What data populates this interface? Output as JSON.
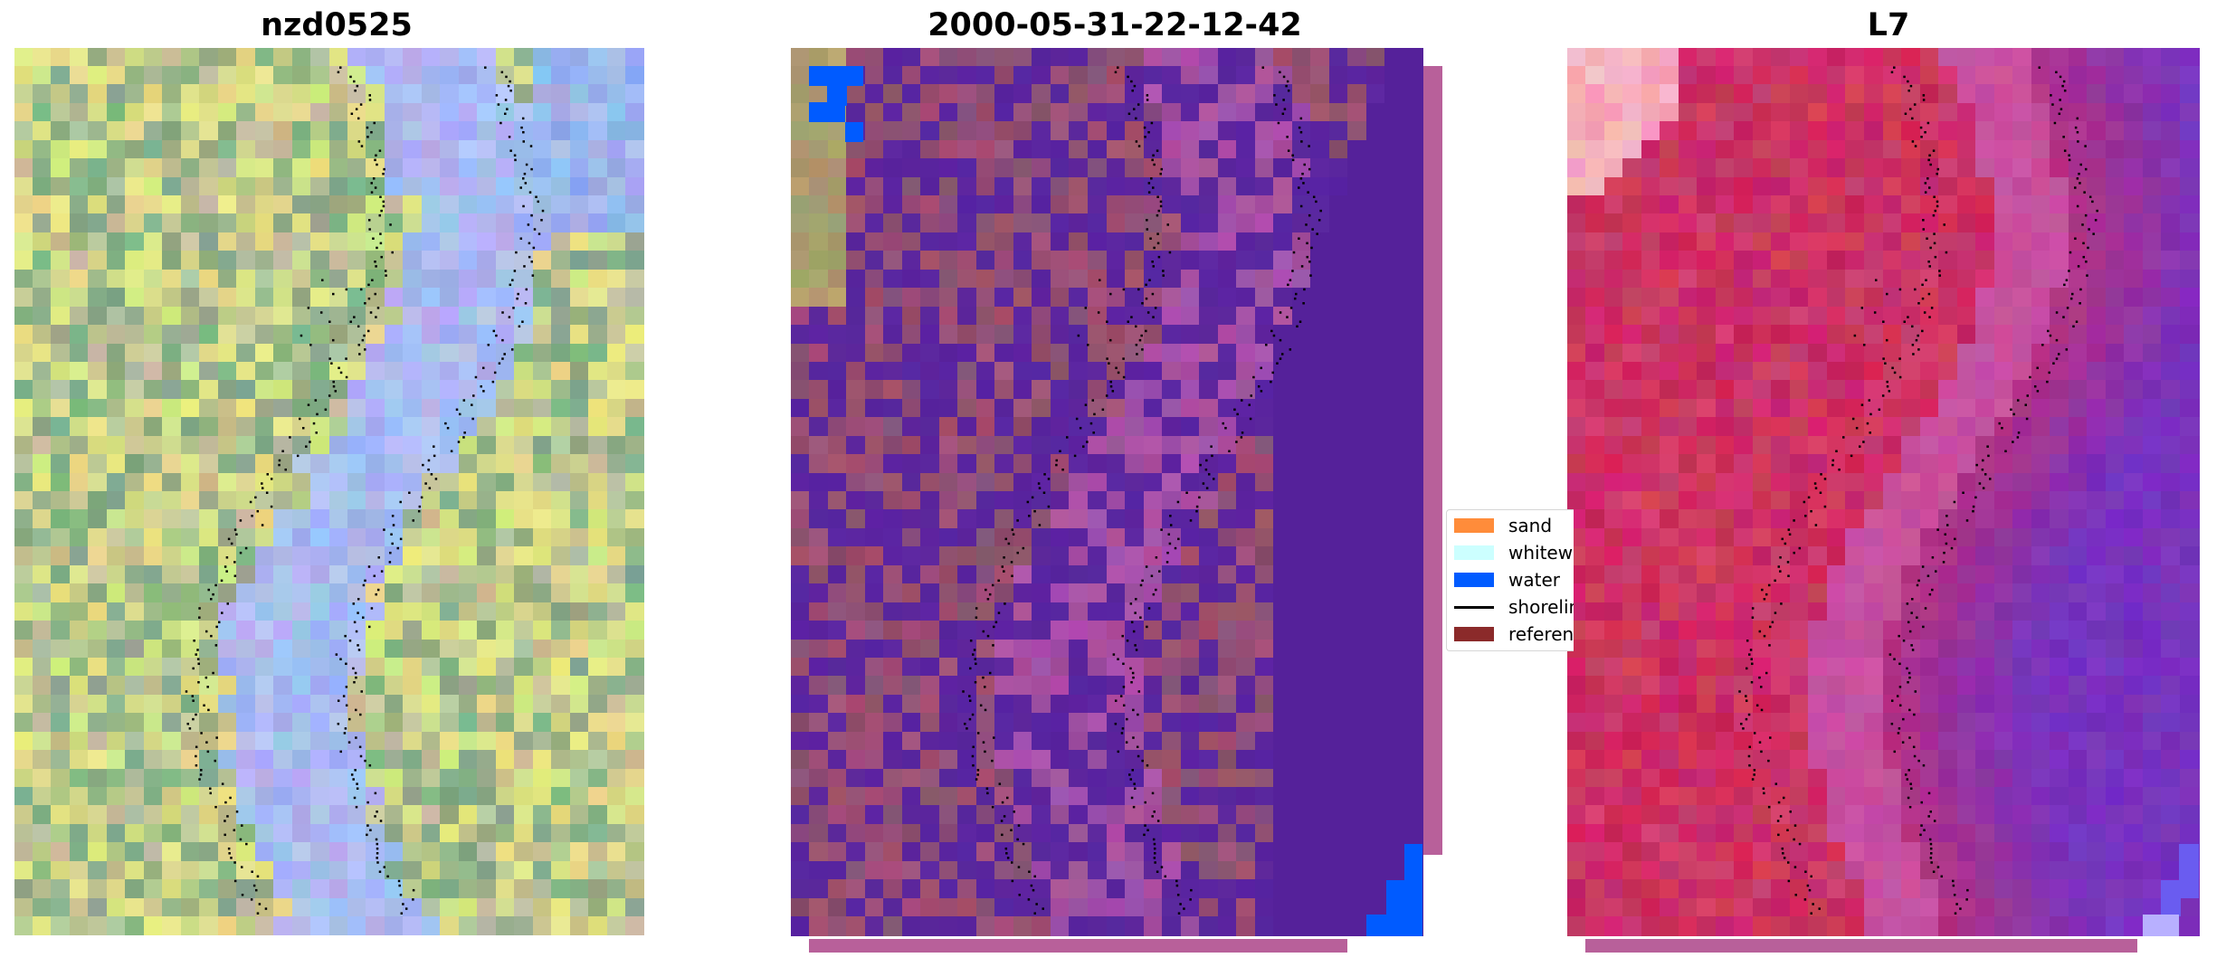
{
  "panels": [
    {
      "title": "nzd0525",
      "palette": "rgb"
    },
    {
      "title": "2000-05-31-22-12-42",
      "palette": "classified"
    },
    {
      "title": "L7",
      "palette": "mndwi"
    }
  ],
  "legend": {
    "items": [
      {
        "label": "sand",
        "color": "#ff8c3a",
        "kind": "patch"
      },
      {
        "label": "whitewater",
        "color": "#ccffff",
        "kind": "patch"
      },
      {
        "label": "water",
        "color": "#005bff",
        "kind": "patch"
      },
      {
        "label": "shoreline",
        "color": "#000000",
        "kind": "line"
      },
      {
        "label": "reference",
        "color": "#8b2a2a",
        "kind": "patch"
      }
    ]
  },
  "colors": {
    "classified_base": "#55219a",
    "classified_land": "#8c4a7a",
    "water": "#005bff",
    "mndwi_high": "#c8124a",
    "mndwi_low": "#6a1fb0",
    "strip": "#b8609a"
  }
}
